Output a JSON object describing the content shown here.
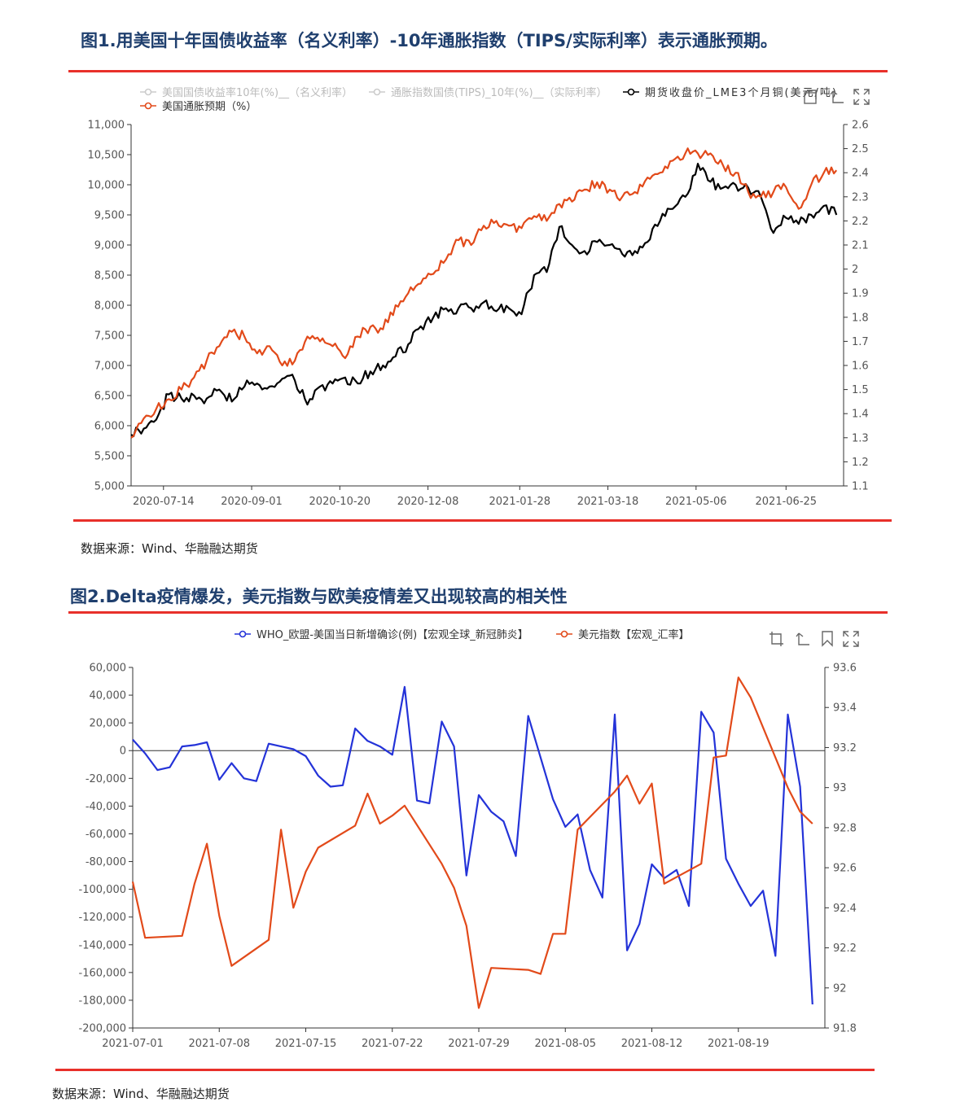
{
  "figure1": {
    "title": "图1.用美国十年国债收益率（名义利率）-10年通胀指数（TIPS/实际利率）表示通胀预期。",
    "source": "数据来源：Wind、华融融达期货",
    "toolbar_icons": [
      "restore-icon",
      "data-view-icon",
      "fullscreen-icon"
    ],
    "chart_data": {
      "type": "line",
      "x_ticks": [
        "2020-07-14",
        "2020-09-01",
        "2020-10-20",
        "2020-12-08",
        "2021-01-28",
        "2021-03-18",
        "2021-05-06",
        "2021-06-25"
      ],
      "y_left_ticks": [
        "5,000",
        "5,500",
        "6,000",
        "6,500",
        "7,000",
        "7,500",
        "8,000",
        "8,500",
        "9,000",
        "9,500",
        "10,000",
        "10,500",
        "11,000"
      ],
      "y_right_ticks": [
        "1.1",
        "1.2",
        "1.3",
        "1.4",
        "1.5",
        "1.6",
        "1.7",
        "1.8",
        "1.9",
        "2",
        "2.1",
        "2.2",
        "2.3",
        "2.4",
        "2.5",
        "2.6"
      ],
      "ylim_left": [
        5000,
        11000
      ],
      "ylim_right": [
        1.1,
        2.6
      ],
      "legend": [
        {
          "name": "美国国债收益率10年(%)__（名义利率）",
          "color": "#cccccc",
          "active": false
        },
        {
          "name": "通胀指数国债(TIPS)_10年(%)__（实际利率）",
          "color": "#cccccc",
          "active": false
        },
        {
          "name": "期货收盘价_LME3个月铜(美元/吨)",
          "color": "#000000",
          "active": true
        },
        {
          "name": "美国通胀预期（%）",
          "color": "#e24a1a",
          "active": true
        }
      ],
      "series": [
        {
          "name": "期货收盘价_LME3个月铜(美元/吨)",
          "axis": "left",
          "color": "#000000",
          "x": [
            "2020-06-26",
            "2020-07-03",
            "2020-07-10",
            "2020-07-17",
            "2020-07-24",
            "2020-07-31",
            "2020-08-07",
            "2020-08-14",
            "2020-08-21",
            "2020-08-28",
            "2020-09-04",
            "2020-09-11",
            "2020-09-18",
            "2020-09-25",
            "2020-10-02",
            "2020-10-09",
            "2020-10-16",
            "2020-10-23",
            "2020-10-30",
            "2020-11-06",
            "2020-11-13",
            "2020-11-20",
            "2020-11-27",
            "2020-12-04",
            "2020-12-11",
            "2020-12-18",
            "2020-12-25",
            "2021-01-01",
            "2021-01-08",
            "2021-01-15",
            "2021-01-22",
            "2021-01-29",
            "2021-02-05",
            "2021-02-12",
            "2021-02-19",
            "2021-02-26",
            "2021-03-05",
            "2021-03-12",
            "2021-03-19",
            "2021-03-26",
            "2021-04-02",
            "2021-04-09",
            "2021-04-16",
            "2021-04-23",
            "2021-04-30",
            "2021-05-07",
            "2021-05-14",
            "2021-05-21",
            "2021-05-28",
            "2021-06-04",
            "2021-06-11",
            "2021-06-18",
            "2021-06-25",
            "2021-07-02",
            "2021-07-09",
            "2021-07-16",
            "2021-07-23"
          ],
          "values": [
            5850,
            5950,
            6100,
            6520,
            6450,
            6500,
            6450,
            6600,
            6400,
            6650,
            6700,
            6650,
            6780,
            6750,
            6350,
            6650,
            6700,
            6800,
            6700,
            6900,
            7000,
            7150,
            7350,
            7650,
            7800,
            7950,
            7950,
            7950,
            8050,
            7900,
            7950,
            7850,
            8500,
            8550,
            9300,
            9000,
            8900,
            9050,
            9000,
            8850,
            8900,
            9050,
            9400,
            9600,
            9800,
            10350,
            10050,
            9950,
            10000,
            9950,
            9800,
            9200,
            9450,
            9350,
            9500,
            9650,
            9500
          ]
        },
        {
          "name": "美国通胀预期（%）",
          "axis": "right",
          "color": "#e24a1a",
          "x": [
            "2020-06-26",
            "2020-07-03",
            "2020-07-10",
            "2020-07-17",
            "2020-07-24",
            "2020-07-31",
            "2020-08-07",
            "2020-08-14",
            "2020-08-21",
            "2020-08-28",
            "2020-09-04",
            "2020-09-11",
            "2020-09-18",
            "2020-09-25",
            "2020-10-02",
            "2020-10-09",
            "2020-10-16",
            "2020-10-23",
            "2020-10-30",
            "2020-11-06",
            "2020-11-13",
            "2020-11-20",
            "2020-11-27",
            "2020-12-04",
            "2020-12-11",
            "2020-12-18",
            "2020-12-25",
            "2021-01-01",
            "2021-01-08",
            "2021-01-15",
            "2021-01-22",
            "2021-01-29",
            "2021-02-05",
            "2021-02-12",
            "2021-02-19",
            "2021-02-26",
            "2021-03-05",
            "2021-03-12",
            "2021-03-19",
            "2021-03-26",
            "2021-04-02",
            "2021-04-09",
            "2021-04-16",
            "2021-04-23",
            "2021-04-30",
            "2021-05-07",
            "2021-05-14",
            "2021-05-21",
            "2021-05-28",
            "2021-06-04",
            "2021-06-11",
            "2021-06-18",
            "2021-06-25",
            "2021-07-02",
            "2021-07-09",
            "2021-07-16",
            "2021-07-23"
          ],
          "values": [
            1.3,
            1.38,
            1.42,
            1.46,
            1.5,
            1.55,
            1.62,
            1.68,
            1.74,
            1.72,
            1.65,
            1.68,
            1.6,
            1.62,
            1.72,
            1.7,
            1.68,
            1.63,
            1.72,
            1.76,
            1.75,
            1.85,
            1.9,
            1.94,
            1.98,
            2.04,
            2.12,
            2.1,
            2.18,
            2.2,
            2.18,
            2.17,
            2.22,
            2.2,
            2.27,
            2.28,
            2.33,
            2.36,
            2.33,
            2.3,
            2.32,
            2.38,
            2.4,
            2.45,
            2.48,
            2.48,
            2.48,
            2.43,
            2.4,
            2.32,
            2.3,
            2.32,
            2.34,
            2.25,
            2.35,
            2.4,
            2.41
          ]
        }
      ]
    }
  },
  "figure2": {
    "title": "图2.Delta疫情爆发，美元指数与欧美疫情差又出现较高的相关性",
    "source": "数据来源：Wind、华融融达期货",
    "toolbar_icons": [
      "zoom-icon",
      "restore-icon",
      "bookmark-icon",
      "fullscreen-icon"
    ],
    "chart_data": {
      "type": "line",
      "x_ticks": [
        "2021-07-01",
        "2021-07-08",
        "2021-07-15",
        "2021-07-22",
        "2021-07-29",
        "2021-08-05",
        "2021-08-12",
        "2021-08-19"
      ],
      "y_left_ticks": [
        "-200,000",
        "-180,000",
        "-160,000",
        "-140,000",
        "-120,000",
        "-100,000",
        "-80,000",
        "-60,000",
        "-40,000",
        "-20,000",
        "0",
        "20,000",
        "40,000",
        "60,000"
      ],
      "y_right_ticks": [
        "91.8",
        "92",
        "92.2",
        "92.4",
        "92.6",
        "92.8",
        "93",
        "93.2",
        "93.4",
        "93.6"
      ],
      "ylim_left": [
        -200000,
        60000
      ],
      "ylim_right": [
        91.8,
        93.6
      ],
      "legend": [
        {
          "name": "WHO_欧盟-美国当日新增确诊(例)【宏观全球_新冠肺炎】",
          "color": "#2433d8"
        },
        {
          "name": "美元指数【宏观_汇率】",
          "color": "#e24a1a"
        }
      ],
      "series": [
        {
          "name": "WHO_欧盟-美国当日新增确诊(例)【宏观全球_新冠肺炎】",
          "axis": "left",
          "color": "#2433d8",
          "x": [
            "2021-07-01",
            "2021-07-02",
            "2021-07-03",
            "2021-07-04",
            "2021-07-05",
            "2021-07-06",
            "2021-07-07",
            "2021-07-08",
            "2021-07-09",
            "2021-07-10",
            "2021-07-11",
            "2021-07-12",
            "2021-07-13",
            "2021-07-14",
            "2021-07-15",
            "2021-07-16",
            "2021-07-17",
            "2021-07-18",
            "2021-07-19",
            "2021-07-20",
            "2021-07-21",
            "2021-07-22",
            "2021-07-23",
            "2021-07-24",
            "2021-07-25",
            "2021-07-26",
            "2021-07-27",
            "2021-07-28",
            "2021-07-29",
            "2021-07-30",
            "2021-07-31",
            "2021-08-01",
            "2021-08-02",
            "2021-08-03",
            "2021-08-04",
            "2021-08-05",
            "2021-08-06",
            "2021-08-07",
            "2021-08-08",
            "2021-08-09",
            "2021-08-10",
            "2021-08-11",
            "2021-08-12",
            "2021-08-13",
            "2021-08-14",
            "2021-08-15",
            "2021-08-16",
            "2021-08-17",
            "2021-08-18",
            "2021-08-19",
            "2021-08-20",
            "2021-08-21",
            "2021-08-22",
            "2021-08-23",
            "2021-08-24",
            "2021-08-25"
          ],
          "values": [
            8000,
            -2000,
            -14000,
            -12000,
            3000,
            4000,
            6000,
            -21000,
            -9000,
            -20000,
            -22000,
            5000,
            3000,
            1000,
            -4000,
            -18000,
            -26000,
            -25000,
            16000,
            7000,
            3000,
            -3000,
            46000,
            -36000,
            -38000,
            21000,
            3000,
            -90000,
            -32000,
            -44000,
            -51000,
            -76000,
            25000,
            -5000,
            -35000,
            -55000,
            -46000,
            -86000,
            -106000,
            26000,
            -144000,
            -125000,
            -82000,
            -92000,
            -86000,
            -112000,
            28000,
            13000,
            -78000,
            -96000,
            -112000,
            -101000,
            -148000,
            26000,
            -26000,
            -183000
          ]
        },
        {
          "name": "美元指数【宏观_汇率】",
          "axis": "right",
          "color": "#e24a1a",
          "x": [
            "2021-07-01",
            "2021-07-02",
            "2021-07-05",
            "2021-07-06",
            "2021-07-07",
            "2021-07-08",
            "2021-07-09",
            "2021-07-12",
            "2021-07-13",
            "2021-07-14",
            "2021-07-15",
            "2021-07-16",
            "2021-07-19",
            "2021-07-20",
            "2021-07-21",
            "2021-07-22",
            "2021-07-23",
            "2021-07-26",
            "2021-07-27",
            "2021-07-28",
            "2021-07-29",
            "2021-07-30",
            "2021-08-02",
            "2021-08-03",
            "2021-08-04",
            "2021-08-05",
            "2021-08-06",
            "2021-08-09",
            "2021-08-10",
            "2021-08-11",
            "2021-08-12",
            "2021-08-13",
            "2021-08-16",
            "2021-08-17",
            "2021-08-18",
            "2021-08-19",
            "2021-08-20",
            "2021-08-23",
            "2021-08-24",
            "2021-08-25"
          ],
          "values": [
            92.53,
            92.25,
            92.26,
            92.52,
            92.72,
            92.36,
            92.11,
            92.24,
            92.79,
            92.4,
            92.58,
            92.7,
            92.81,
            92.97,
            92.82,
            92.86,
            92.91,
            92.62,
            92.5,
            92.31,
            91.9,
            92.1,
            92.09,
            92.07,
            92.27,
            92.27,
            92.79,
            92.98,
            93.06,
            92.92,
            93.02,
            92.52,
            92.62,
            93.15,
            93.16,
            93.55,
            93.45,
            93.0,
            92.88,
            92.82
          ]
        }
      ]
    }
  }
}
